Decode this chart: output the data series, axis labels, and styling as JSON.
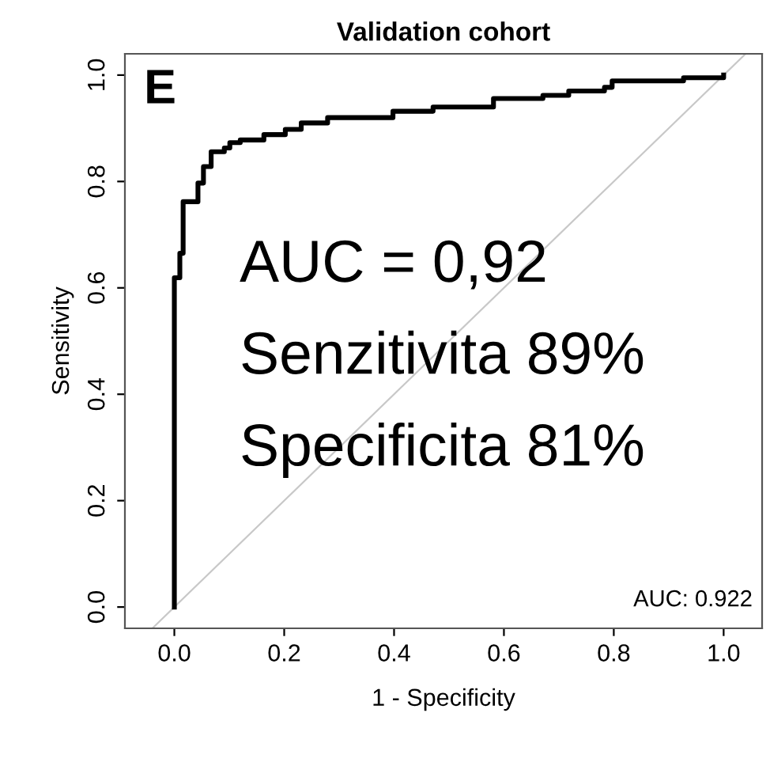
{
  "chart_data": {
    "type": "line",
    "title": "Validation cohort",
    "xlabel": "1 - Specificity",
    "ylabel": "Sensitivity",
    "xlim": [
      -0.09,
      1.07
    ],
    "ylim": [
      -0.04,
      1.04
    ],
    "xticks": [
      {
        "value": 0,
        "label": "0.0"
      },
      {
        "value": 0.2,
        "label": "0.2"
      },
      {
        "value": 0.4,
        "label": "0.4"
      },
      {
        "value": 0.6,
        "label": "0.6"
      },
      {
        "value": 0.8,
        "label": "0.8"
      },
      {
        "value": 1,
        "label": "1.0"
      }
    ],
    "yticks": [
      {
        "value": 0,
        "label": "0.0"
      },
      {
        "value": 0.2,
        "label": "0.2"
      },
      {
        "value": 0.4,
        "label": "0.4"
      },
      {
        "value": 0.6,
        "label": "0.6"
      },
      {
        "value": 0.8,
        "label": "0.8"
      },
      {
        "value": 1,
        "label": "1.0"
      }
    ],
    "grid": false,
    "legend": false,
    "marker": "none",
    "series": [
      {
        "color": "#c8c8c8",
        "x": [
          -0.04,
          1.04
        ],
        "values": [
          -0.04,
          1.04
        ],
        "line_style": "solid"
      },
      {
        "color": "#000000",
        "line_style": "solid",
        "x": [
          0,
          0,
          0.01,
          0.01,
          0.016,
          0.016,
          0.043,
          0.043,
          0.053,
          0.053,
          0.067,
          0.067,
          0.091,
          0.091,
          0.101,
          0.101,
          0.12,
          0.12,
          0.163,
          0.163,
          0.202,
          0.202,
          0.231,
          0.231,
          0.279,
          0.279,
          0.398,
          0.398,
          0.471,
          0.471,
          0.581,
          0.581,
          0.671,
          0.671,
          0.718,
          0.718,
          0.783,
          0.783,
          0.797,
          0.797,
          0.927,
          0.927,
          1.0,
          1.0
        ],
        "values": [
          0,
          0.619,
          0.619,
          0.665,
          0.665,
          0.762,
          0.762,
          0.797,
          0.797,
          0.828,
          0.828,
          0.856,
          0.856,
          0.863,
          0.863,
          0.873,
          0.873,
          0.878,
          0.878,
          0.888,
          0.888,
          0.898,
          0.898,
          0.91,
          0.91,
          0.92,
          0.92,
          0.932,
          0.932,
          0.94,
          0.94,
          0.956,
          0.956,
          0.962,
          0.962,
          0.97,
          0.97,
          0.977,
          0.977,
          0.989,
          0.989,
          0.995,
          0.995,
          1.0
        ]
      }
    ],
    "annotations": [
      "E",
      "AUC = 0,92",
      "Senzitivita 89%",
      "Specificita 81%",
      "AUC: 0.922"
    ]
  }
}
